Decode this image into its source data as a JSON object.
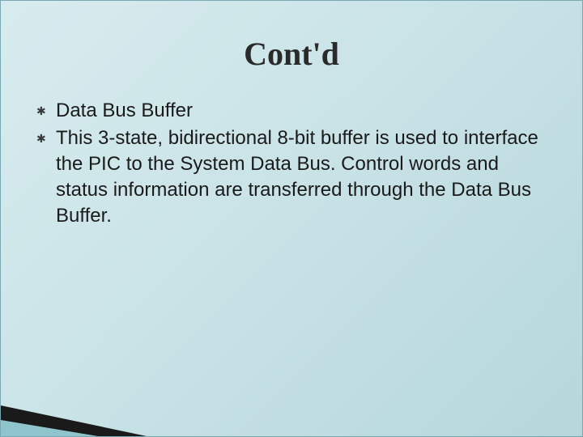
{
  "slide": {
    "title": "Cont'd",
    "title_color": "#2a2a2a",
    "title_fontsize": 40,
    "background_gradient": [
      "#d8ecef",
      "#c8e2e6",
      "#b5d7dc"
    ],
    "border_color": "#7aa8b0",
    "bullet_glyph": "✱",
    "bullets": [
      {
        "text": "Data Bus Buffer"
      },
      {
        "text": "This 3-state, bidirectional 8-bit buffer is used to interface the PIC to the System Data Bus. Control words and status information are transferred through the Data Bus Buffer."
      }
    ],
    "body_fontsize": 24,
    "body_color": "#1a1a1a",
    "accent": {
      "dark_color": "#1a1a1a",
      "light_color": "#8fc4cc"
    }
  }
}
